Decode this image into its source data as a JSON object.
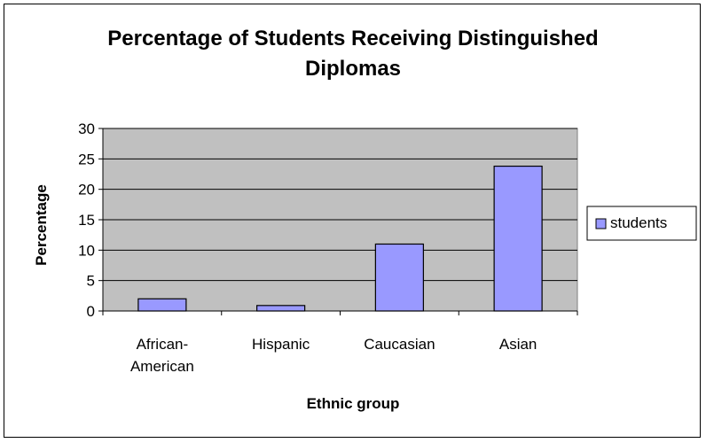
{
  "chart_data": {
    "type": "bar",
    "title_lines": [
      "Percentage of Students Receiving Distinguished",
      "Diplomas"
    ],
    "xlabel": "Ethnic group",
    "ylabel": "Percentage",
    "categories": [
      [
        "African-",
        "American"
      ],
      [
        "Hispanic"
      ],
      [
        "Caucasian"
      ],
      [
        "Asian"
      ]
    ],
    "series": [
      {
        "name": "students",
        "values": [
          2,
          0.9,
          11,
          23.8
        ],
        "color": "#9999ff"
      }
    ],
    "ylim": [
      0,
      30
    ],
    "yticks": [
      "0",
      "5",
      "10",
      "15",
      "20",
      "25",
      "30"
    ],
    "grid": true,
    "plot_background": "#c0c0c0",
    "legend_position": "right"
  }
}
